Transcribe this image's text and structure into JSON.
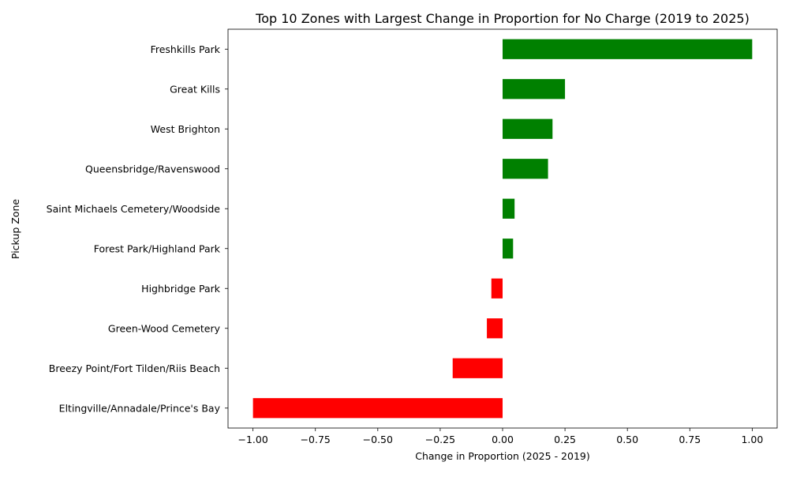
{
  "chart_data": {
    "type": "bar",
    "orientation": "horizontal",
    "title": "Top 10 Zones with Largest Change in Proportion for No Charge (2019 to 2025)",
    "xlabel": "Change in Proportion (2025 - 2019)",
    "ylabel": "Pickup Zone",
    "xlim": [
      -1.1,
      1.1
    ],
    "xticks": [
      -1.0,
      -0.75,
      -0.5,
      -0.25,
      0.0,
      0.25,
      0.5,
      0.75,
      1.0
    ],
    "xtick_labels": [
      "−1.00",
      "−0.75",
      "−0.50",
      "−0.25",
      "0.00",
      "0.25",
      "0.50",
      "0.75",
      "1.00"
    ],
    "grid": false,
    "legend": "none",
    "colors": {
      "positive": "#008000",
      "negative": "#ff0000"
    },
    "categories": [
      "Freshkills Park",
      "Great Kills",
      "West Brighton",
      "Queensbridge/Ravenswood",
      "Saint Michaels Cemetery/Woodside",
      "Forest Park/Highland Park",
      "Highbridge Park",
      "Green-Wood Cemetery",
      "Breezy Point/Fort Tilden/Riis Beach",
      "Eltingville/Annadale/Prince's Bay"
    ],
    "values": [
      1.0,
      0.25,
      0.2,
      0.182,
      0.048,
      0.042,
      -0.045,
      -0.063,
      -0.2,
      -1.0
    ]
  }
}
